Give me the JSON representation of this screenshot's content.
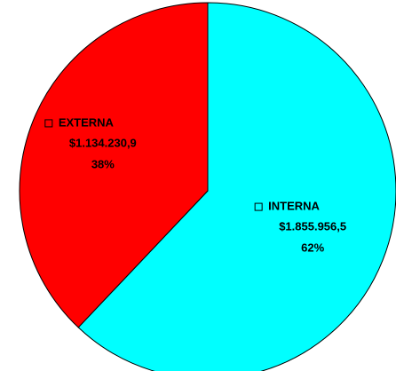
{
  "chart_data": {
    "type": "pie",
    "categories": [
      "INTERNA",
      "EXTERNA"
    ],
    "values": [
      1855956.5,
      1134230.9
    ],
    "value_labels": [
      "$1.855.956,5",
      "$1.134.230,9"
    ],
    "percent_labels": [
      "62%",
      "38%"
    ],
    "colors": [
      "#00ffff",
      "#ff0000"
    ]
  }
}
